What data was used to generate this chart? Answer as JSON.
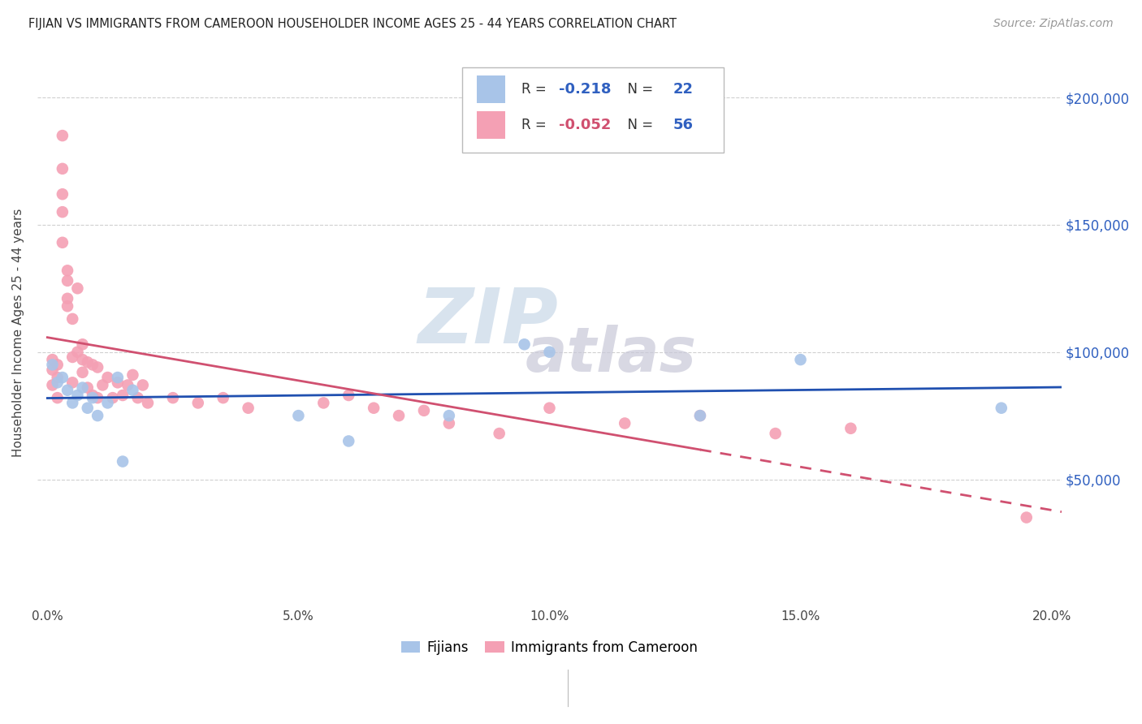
{
  "title": "FIJIAN VS IMMIGRANTS FROM CAMEROON HOUSEHOLDER INCOME AGES 25 - 44 YEARS CORRELATION CHART",
  "source": "Source: ZipAtlas.com",
  "ylabel": "Householder Income Ages 25 - 44 years",
  "xlabel_ticks": [
    "0.0%",
    "5.0%",
    "10.0%",
    "15.0%",
    "20.0%"
  ],
  "xlabel_vals": [
    0.0,
    0.05,
    0.1,
    0.15,
    0.2
  ],
  "ytick_labels": [
    "$50,000",
    "$100,000",
    "$150,000",
    "$200,000"
  ],
  "ytick_vals": [
    50000,
    100000,
    150000,
    200000
  ],
  "ylim": [
    0,
    215000
  ],
  "xlim": [
    -0.002,
    0.202
  ],
  "watermark_top": "ZIP",
  "watermark_bottom": "atlas",
  "legend_blue_R": "-0.218",
  "legend_blue_N": "22",
  "legend_pink_R": "-0.052",
  "legend_pink_N": "56",
  "fijian_color": "#a8c4e8",
  "cameroon_color": "#f4a0b4",
  "trendline_blue_color": "#2050b0",
  "trendline_pink_color": "#d05070",
  "background_color": "#ffffff",
  "grid_color": "#d0d0d0",
  "fijians_x": [
    0.001,
    0.002,
    0.003,
    0.004,
    0.005,
    0.006,
    0.007,
    0.008,
    0.009,
    0.01,
    0.012,
    0.014,
    0.015,
    0.017,
    0.05,
    0.06,
    0.08,
    0.095,
    0.1,
    0.13,
    0.15,
    0.19
  ],
  "fijians_y": [
    95000,
    88000,
    90000,
    85000,
    80000,
    83000,
    86000,
    78000,
    82000,
    75000,
    80000,
    90000,
    57000,
    85000,
    75000,
    65000,
    75000,
    103000,
    100000,
    75000,
    97000,
    78000
  ],
  "cameroon_x": [
    0.001,
    0.001,
    0.001,
    0.002,
    0.002,
    0.002,
    0.003,
    0.003,
    0.003,
    0.003,
    0.003,
    0.004,
    0.004,
    0.004,
    0.004,
    0.005,
    0.005,
    0.005,
    0.006,
    0.006,
    0.007,
    0.007,
    0.007,
    0.008,
    0.008,
    0.009,
    0.009,
    0.01,
    0.01,
    0.011,
    0.012,
    0.013,
    0.014,
    0.015,
    0.016,
    0.017,
    0.018,
    0.019,
    0.02,
    0.025,
    0.03,
    0.035,
    0.04,
    0.055,
    0.06,
    0.065,
    0.07,
    0.075,
    0.08,
    0.09,
    0.1,
    0.115,
    0.13,
    0.145,
    0.16,
    0.195
  ],
  "cameroon_y": [
    97000,
    93000,
    87000,
    95000,
    90000,
    82000,
    185000,
    172000,
    162000,
    155000,
    143000,
    132000,
    128000,
    121000,
    118000,
    113000,
    98000,
    88000,
    125000,
    100000,
    103000,
    97000,
    92000,
    96000,
    86000,
    95000,
    83000,
    94000,
    82000,
    87000,
    90000,
    82000,
    88000,
    83000,
    87000,
    91000,
    82000,
    87000,
    80000,
    82000,
    80000,
    82000,
    78000,
    80000,
    83000,
    78000,
    75000,
    77000,
    72000,
    68000,
    78000,
    72000,
    75000,
    68000,
    70000,
    35000
  ],
  "trendline_dash_start": 0.13,
  "bottom_legend_labels": [
    "Fijians",
    "Immigrants from Cameroon"
  ]
}
